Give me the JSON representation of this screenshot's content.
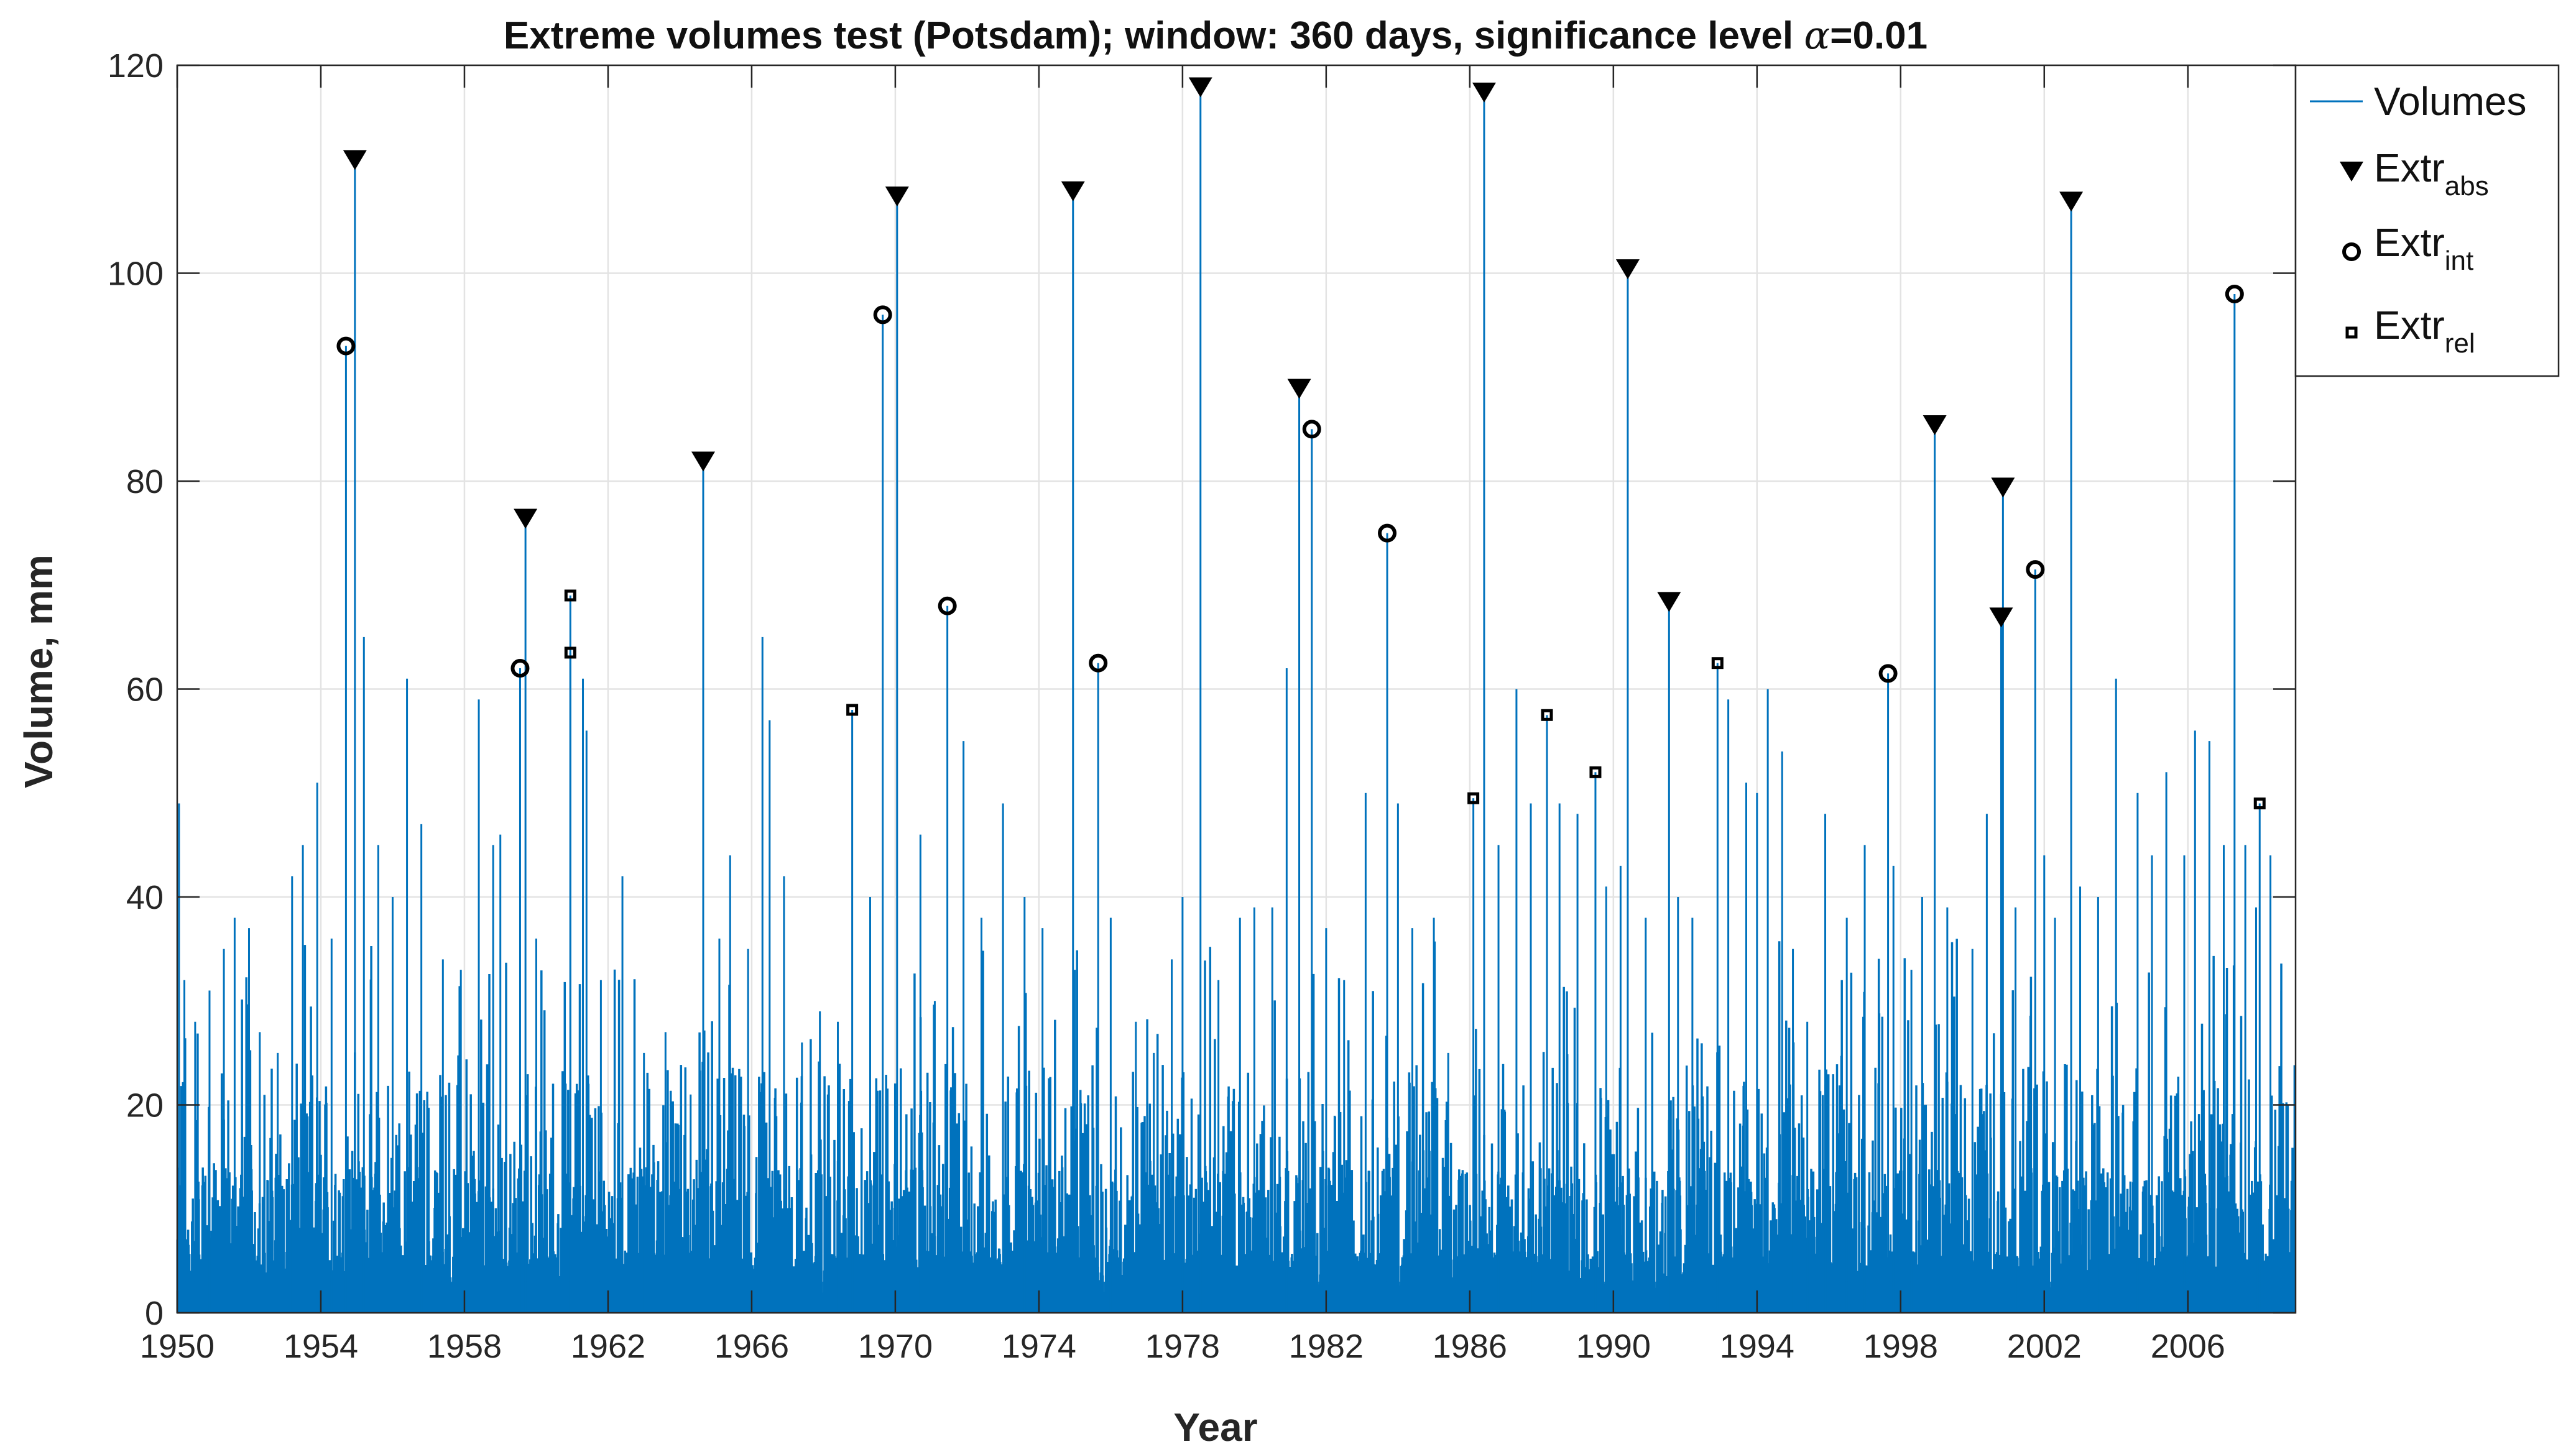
{
  "chart_data": {
    "type": "bar",
    "title_parts": {
      "prefix": "Extreme volumes test (Potsdam); window: 360 days, significance level ",
      "symbol": "α",
      "suffix": "=0.01"
    },
    "xlabel": "Year",
    "ylabel": "Volume, mm",
    "xlim": [
      1950,
      2009
    ],
    "ylim": [
      0,
      120
    ],
    "xticks": [
      "1950",
      "1954",
      "1958",
      "1962",
      "1966",
      "1970",
      "1974",
      "1978",
      "1982",
      "1986",
      "1990",
      "1994",
      "1998",
      "2002",
      "2006"
    ],
    "yticks": [
      "0",
      "20",
      "40",
      "60",
      "80",
      "100",
      "120"
    ],
    "grid": true,
    "legend_position": "outside-top-right",
    "colors": {
      "volumes": "#0072bd",
      "markers": "#000000",
      "grid": "#e3e3e3"
    },
    "legend": [
      {
        "marker": "line",
        "label": "Volumes",
        "sub": ""
      },
      {
        "marker": "triangle-down",
        "label": "Extr",
        "sub": "abs"
      },
      {
        "marker": "circle",
        "label": "Extr",
        "sub": "int"
      },
      {
        "marker": "square",
        "label": "Extr",
        "sub": "rel"
      }
    ],
    "series": [
      {
        "name": "Volumes",
        "style": "dense-daily-spikes",
        "x": [
          1950.05,
          1950.2,
          1950.5,
          1950.9,
          1951.3,
          1951.6,
          1952.0,
          1952.3,
          1952.8,
          1953.2,
          1953.5,
          1953.9,
          1954.3,
          1955.2,
          1955.6,
          1956.0,
          1956.4,
          1956.8,
          1957.4,
          1957.9,
          1958.4,
          1958.8,
          1959.0,
          1960.0,
          1961.3,
          1961.4,
          1961.8,
          1962.4,
          1963.0,
          1963.6,
          1964.3,
          1965.1,
          1965.4,
          1965.9,
          1966.3,
          1966.5,
          1966.9,
          1967.4,
          1967.9,
          1968.4,
          1969.3,
          1970.7,
          1971.1,
          1971.9,
          1972.4,
          1973.0,
          1973.6,
          1974.1,
          1975.0,
          1976.0,
          1976.7,
          1977.2,
          1977.7,
          1978.0,
          1979.0,
          1979.6,
          1980.0,
          1980.5,
          1980.9,
          1982.0,
          1982.5,
          1983.1,
          1984.0,
          1984.4,
          1985.0,
          1985.4,
          1986.8,
          1987.3,
          1987.7,
          1988.5,
          1989.0,
          1989.8,
          1990.2,
          1990.9,
          1991.8,
          1992.2,
          1993.2,
          1993.7,
          1994.0,
          1994.3,
          1994.7,
          1995.0,
          1995.4,
          1995.9,
          1996.5,
          1997.0,
          1997.8,
          1998.3,
          1998.6,
          1999.3,
          2000.0,
          2000.4,
          2001.2,
          2002.0,
          2002.3,
          2003.0,
          2003.5,
          2004.0,
          2004.6,
          2005.0,
          2005.4,
          2005.9,
          2006.2,
          2006.6,
          2007.0,
          2007.6,
          2007.9,
          2008.3,
          2008.6,
          2008.9
        ],
        "y": [
          49,
          32,
          28,
          31,
          35,
          38,
          37,
          27,
          25,
          42,
          45,
          51,
          36,
          65,
          45,
          40,
          61,
          47,
          34,
          33,
          59,
          45,
          46,
          36,
          61,
          56,
          32,
          42,
          25,
          27,
          21,
          36,
          44,
          35,
          65,
          57,
          42,
          26,
          29,
          28,
          40,
          46,
          30,
          55,
          38,
          49,
          40,
          37,
          33,
          38,
          28,
          25,
          34,
          40,
          32,
          38,
          39,
          39,
          62,
          37,
          32,
          50,
          49,
          37,
          38,
          25,
          45,
          60,
          49,
          49,
          48,
          41,
          43,
          38,
          40,
          38,
          59,
          51,
          50,
          60,
          54,
          35,
          28,
          48,
          38,
          45,
          43,
          33,
          40,
          39,
          35,
          48,
          39,
          44,
          38,
          41,
          40,
          61,
          50,
          44,
          52,
          44,
          56,
          55,
          45,
          45,
          39,
          44,
          31,
          12
        ]
      },
      {
        "name": "Extr_abs",
        "x": [
          1954.95,
          1959.7,
          1964.65,
          1970.05,
          1974.95,
          1978.5,
          1981.25,
          1986.4,
          1990.4,
          1991.55,
          1998.95,
          2000.85,
          2000.8,
          2002.75
        ],
        "y": [
          111,
          76.5,
          82,
          107.5,
          108,
          118,
          89,
          117.5,
          100.5,
          68.5,
          85.5,
          79.5,
          67,
          107
        ]
      },
      {
        "name": "Extr_int",
        "x": [
          1954.7,
          1959.55,
          1969.65,
          1971.45,
          1975.65,
          1981.6,
          1983.7,
          1997.65,
          2001.75,
          2007.3
        ],
        "y": [
          93,
          62,
          96,
          68,
          62.5,
          85,
          75,
          61.5,
          71.5,
          98
        ]
      },
      {
        "name": "Extr_rel",
        "x": [
          1960.95,
          1960.95,
          1968.8,
          1986.1,
          1988.15,
          1989.5,
          1992.9,
          2008.0
        ],
        "y": [
          69,
          63.5,
          58,
          49.5,
          57.5,
          52,
          62.5,
          49
        ]
      }
    ]
  }
}
